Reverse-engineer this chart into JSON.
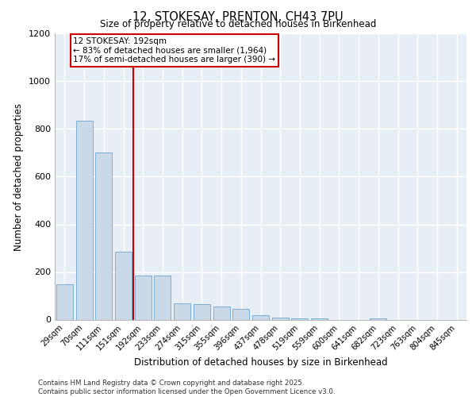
{
  "title": "12, STOKESAY, PRENTON, CH43 7PU",
  "subtitle": "Size of property relative to detached houses in Birkenhead",
  "xlabel": "Distribution of detached houses by size in Birkenhead",
  "ylabel": "Number of detached properties",
  "categories": [
    "29sqm",
    "70sqm",
    "111sqm",
    "151sqm",
    "192sqm",
    "233sqm",
    "274sqm",
    "315sqm",
    "355sqm",
    "396sqm",
    "437sqm",
    "478sqm",
    "519sqm",
    "559sqm",
    "600sqm",
    "641sqm",
    "682sqm",
    "723sqm",
    "763sqm",
    "804sqm",
    "845sqm"
  ],
  "values": [
    150,
    835,
    700,
    285,
    185,
    185,
    70,
    65,
    55,
    45,
    18,
    8,
    4,
    4,
    0,
    0,
    4,
    0,
    0,
    0,
    0
  ],
  "bar_color": "#c9d9e8",
  "bar_edge_color": "#7bafd4",
  "vline_x": 4,
  "vline_color": "#cc0000",
  "ylim": [
    0,
    1200
  ],
  "yticks": [
    0,
    200,
    400,
    600,
    800,
    1000,
    1200
  ],
  "annotation_title": "12 STOKESAY: 192sqm",
  "annotation_line1": "← 83% of detached houses are smaller (1,964)",
  "annotation_line2": "17% of semi-detached houses are larger (390) →",
  "annotation_box_color": "#ffffff",
  "annotation_box_edge": "#cc0000",
  "footer_line1": "Contains HM Land Registry data © Crown copyright and database right 2025.",
  "footer_line2": "Contains public sector information licensed under the Open Government Licence v3.0.",
  "bg_color": "#e8eef5",
  "grid_color": "#ffffff"
}
